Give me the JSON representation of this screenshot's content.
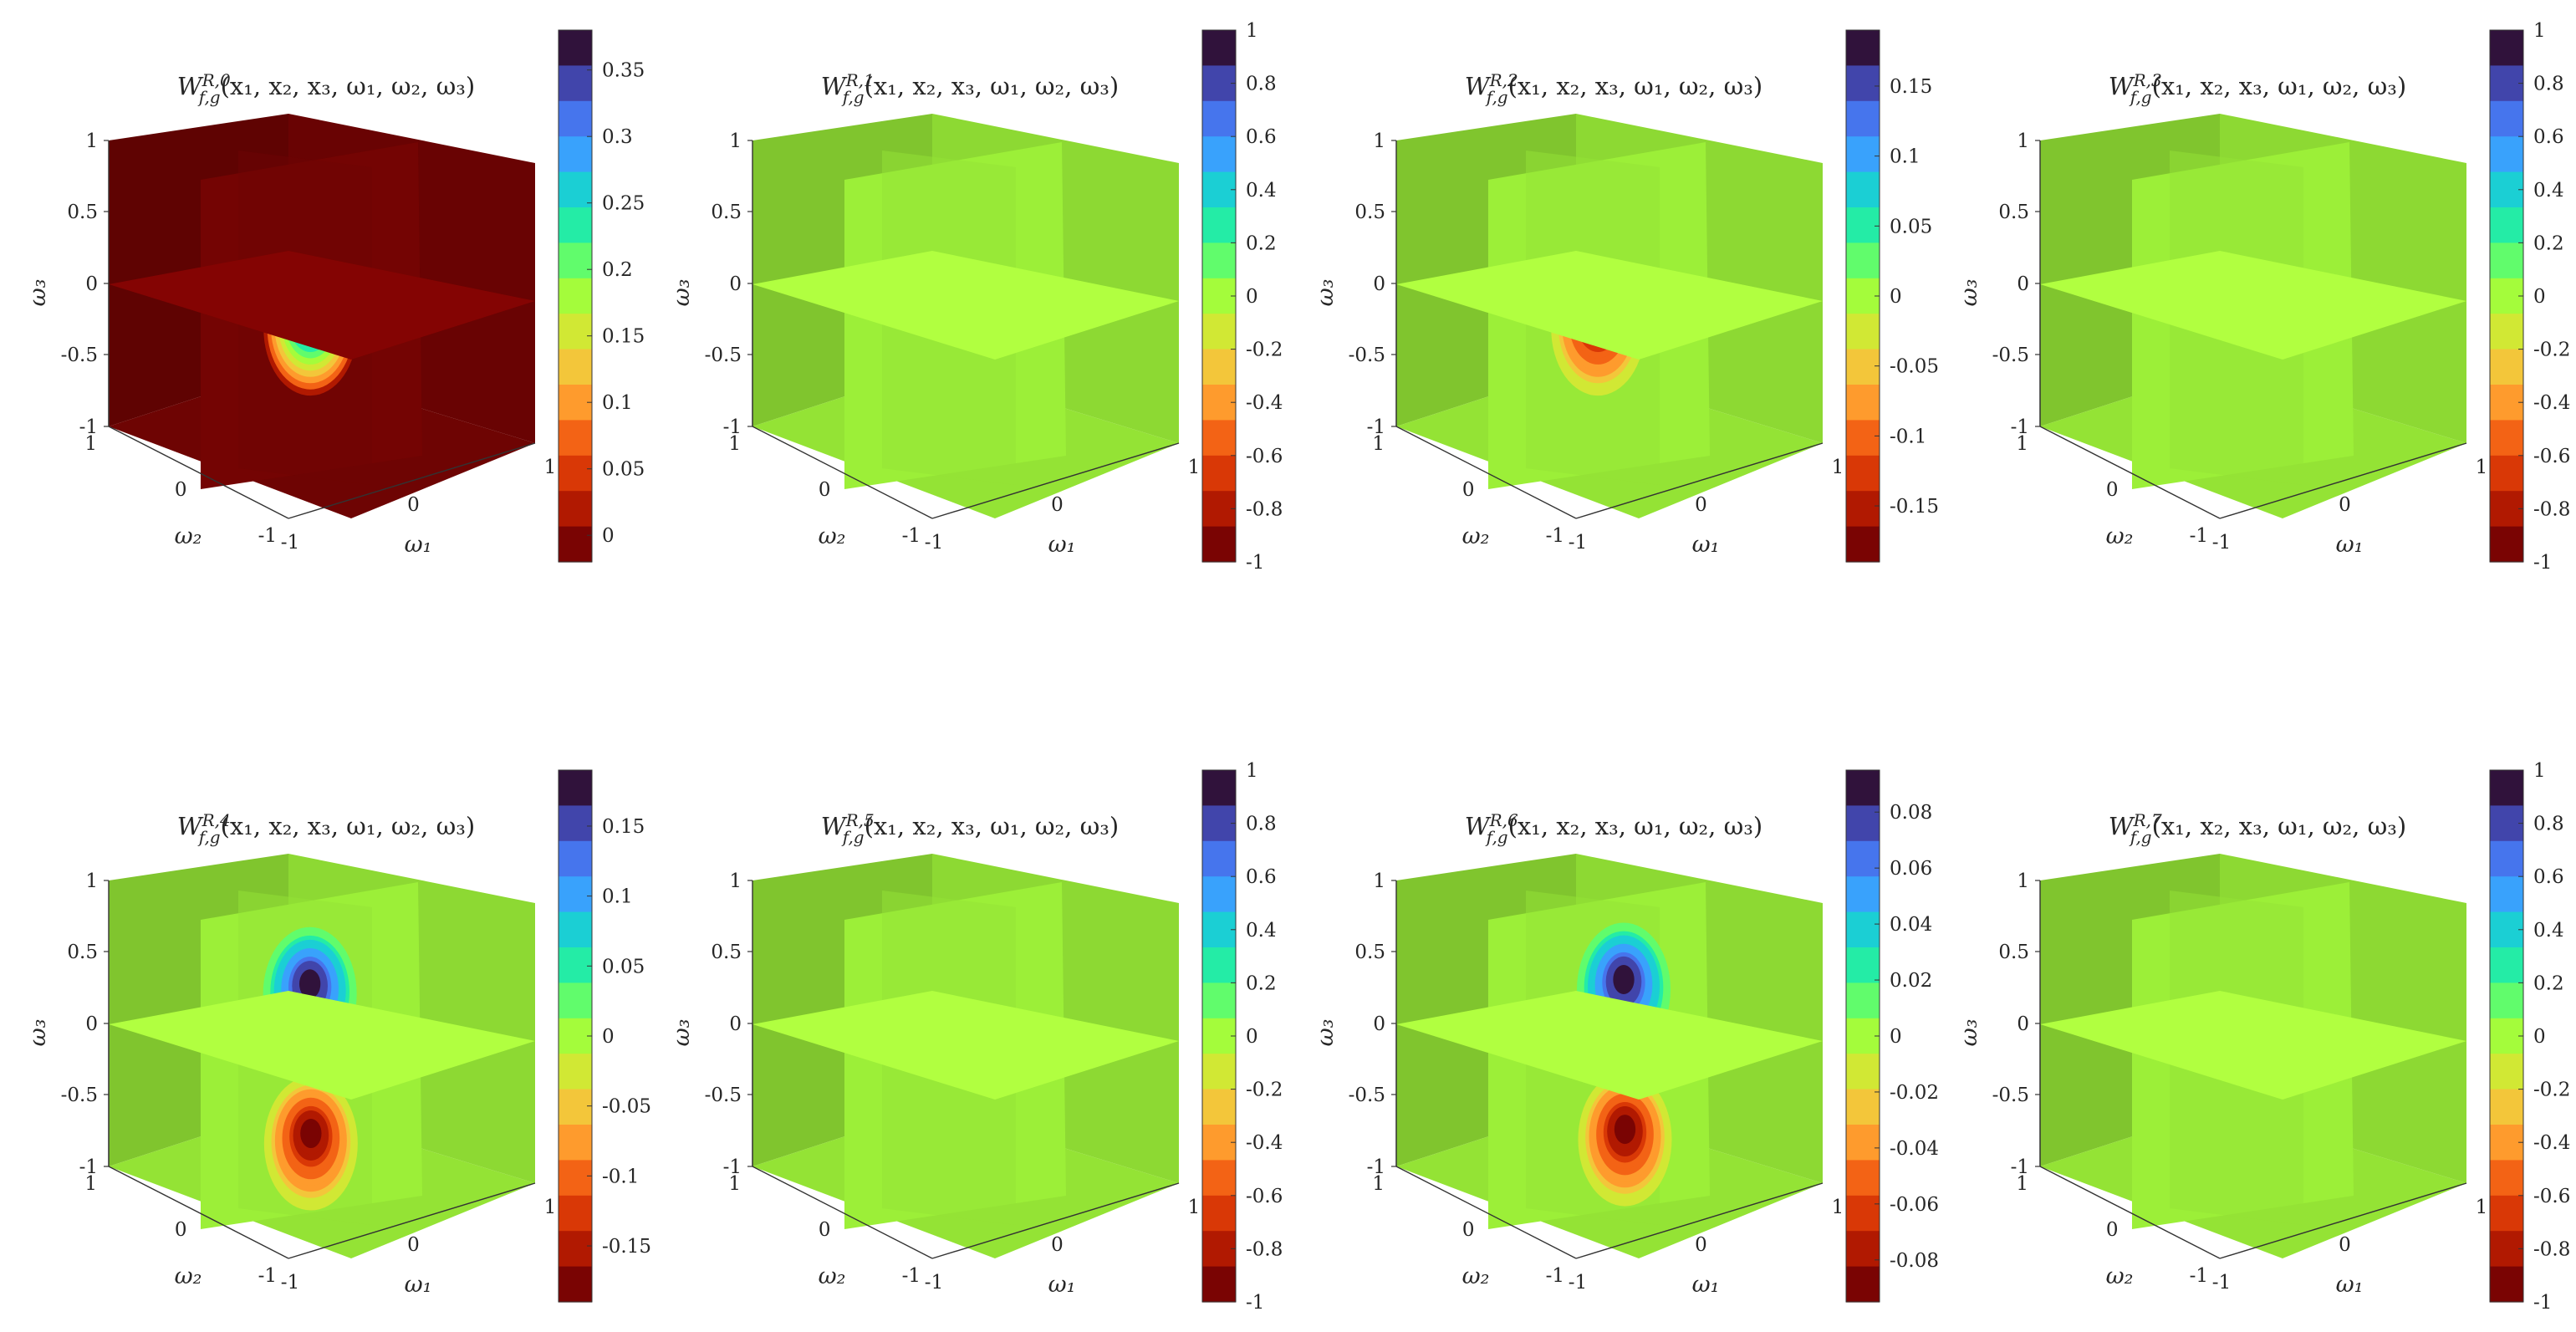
{
  "figure": {
    "colormap": [
      "#30123b",
      "#4145ab",
      "#4675ed",
      "#39a2fc",
      "#1bcfd4",
      "#24eca6",
      "#61fc6c",
      "#a4fc3b",
      "#d1e834",
      "#f3c63a",
      "#fe9b2d",
      "#f36315",
      "#d93806",
      "#b11901",
      "#7a0403"
    ],
    "panels": [
      {
        "title": "W_{f,g}^{R,0}(x1,x2,x3,ω1,ω2,ω3)",
        "title_base": "W",
        "title_sub": "f,g",
        "title_sup": "R,0",
        "title_args": "(x₁, x₂, x₃, ω₁, ω₂, ω₃)",
        "xlabel": "ω₁",
        "ylabel": "ω₂",
        "zlabel": "ω₃",
        "axis_ticks": [
          "1",
          "0.5",
          "0",
          "-0.5",
          "-1"
        ],
        "omega1_ticks": [
          "-1",
          "0",
          "1"
        ],
        "omega2_ticks": [
          "1",
          "0",
          "-1"
        ],
        "chart_data": {
          "type": "heatmap",
          "clim": [
            -0.02,
            0.38
          ],
          "colorbar_ticks": [
            "0.35",
            "0.3",
            "0.25",
            "0.2",
            "0.15",
            "0.1",
            "0.05",
            "0"
          ],
          "colorbar_values": [
            0.35,
            0.3,
            0.25,
            0.2,
            0.15,
            0.1,
            0.05,
            0
          ],
          "background_level": 0.0,
          "features": [
            {
              "plane": "front",
              "u": 0.5,
              "v": 0.5,
              "peak": 0.37
            }
          ]
        }
      },
      {
        "title": "W_{f,g}^{R,1}(x1,x2,x3,ω1,ω2,ω3)",
        "title_base": "W",
        "title_sub": "f,g",
        "title_sup": "R,1",
        "title_args": "(x₁, x₂, x₃, ω₁, ω₂, ω₃)",
        "xlabel": "ω₁",
        "ylabel": "ω₂",
        "zlabel": "ω₃",
        "axis_ticks": [
          "1",
          "0.5",
          "0",
          "-0.5",
          "-1"
        ],
        "omega1_ticks": [
          "-1",
          "0",
          "1"
        ],
        "omega2_ticks": [
          "1",
          "0",
          "-1"
        ],
        "chart_data": {
          "type": "heatmap",
          "clim": [
            -1,
            1
          ],
          "colorbar_ticks": [
            "1",
            "0.8",
            "0.6",
            "0.4",
            "0.2",
            "0",
            "-0.2",
            "-0.4",
            "-0.6",
            "-0.8",
            "-1"
          ],
          "colorbar_values": [
            1,
            0.8,
            0.6,
            0.4,
            0.2,
            0,
            -0.2,
            -0.4,
            -0.6,
            -0.8,
            -1
          ],
          "background_level": 0.0,
          "features": []
        }
      },
      {
        "title": "W_{f,g}^{R,2}(x1,x2,x3,ω1,ω2,ω3)",
        "title_base": "W",
        "title_sub": "f,g",
        "title_sup": "R,2",
        "title_args": "(x₁, x₂, x₃, ω₁, ω₂, ω₃)",
        "xlabel": "ω₁",
        "ylabel": "ω₂",
        "zlabel": "ω₃",
        "axis_ticks": [
          "1",
          "0.5",
          "0",
          "-0.5",
          "-1"
        ],
        "omega1_ticks": [
          "-1",
          "0",
          "1"
        ],
        "omega2_ticks": [
          "1",
          "0",
          "-1"
        ],
        "chart_data": {
          "type": "heatmap",
          "clim": [
            -0.19,
            0.19
          ],
          "colorbar_ticks": [
            "0.15",
            "0.1",
            "0.05",
            "0",
            "-0.05",
            "-0.1",
            "-0.15"
          ],
          "colorbar_values": [
            0.15,
            0.1,
            0.05,
            0,
            -0.05,
            -0.1,
            -0.15
          ],
          "background_level": 0.0,
          "features": [
            {
              "plane": "front",
              "u": 0.5,
              "v": 0.5,
              "peak": -0.19
            }
          ]
        }
      },
      {
        "title": "W_{f,g}^{R,3}(x1,x2,x3,ω1,ω2,ω3)",
        "title_base": "W",
        "title_sub": "f,g",
        "title_sup": "R,3",
        "title_args": "(x₁, x₂, x₃, ω₁, ω₂, ω₃)",
        "xlabel": "ω₁",
        "ylabel": "ω₂",
        "zlabel": "ω₃",
        "axis_ticks": [
          "1",
          "0.5",
          "0",
          "-0.5",
          "-1"
        ],
        "omega1_ticks": [
          "-1",
          "0",
          "1"
        ],
        "omega2_ticks": [
          "1",
          "0",
          "-1"
        ],
        "chart_data": {
          "type": "heatmap",
          "clim": [
            -1,
            1
          ],
          "colorbar_ticks": [
            "1",
            "0.8",
            "0.6",
            "0.4",
            "0.2",
            "0",
            "-0.2",
            "-0.4",
            "-0.6",
            "-0.8",
            "-1"
          ],
          "colorbar_values": [
            1,
            0.8,
            0.6,
            0.4,
            0.2,
            0,
            -0.2,
            -0.4,
            -0.6,
            -0.8,
            -1
          ],
          "background_level": 0.0,
          "features": []
        }
      },
      {
        "title": "W_{f,g}^{R,4}(x1,x2,x3,ω1,ω2,ω3)",
        "title_base": "W",
        "title_sub": "f,g",
        "title_sup": "R,4",
        "title_args": "(x₁, x₂, x₃, ω₁, ω₂, ω₃)",
        "xlabel": "ω₁",
        "ylabel": "ω₂",
        "zlabel": "ω₃",
        "axis_ticks": [
          "1",
          "0.5",
          "0",
          "-0.5",
          "-1"
        ],
        "omega1_ticks": [
          "-1",
          "0",
          "1"
        ],
        "omega2_ticks": [
          "1",
          "0",
          "-1"
        ],
        "chart_data": {
          "type": "heatmap",
          "clim": [
            -0.19,
            0.19
          ],
          "colorbar_ticks": [
            "0.15",
            "0.1",
            "0.05",
            "0",
            "-0.05",
            "-0.1",
            "-0.15"
          ],
          "colorbar_values": [
            0.15,
            0.1,
            0.05,
            0,
            -0.05,
            -0.1,
            -0.15
          ],
          "background_level": 0.0,
          "features": [
            {
              "plane": "front",
              "u": 0.5,
              "v": 0.26,
              "peak": -0.19
            },
            {
              "plane": "front",
              "u": 0.5,
              "v": 0.74,
              "peak": 0.19
            }
          ]
        }
      },
      {
        "title": "W_{f,g}^{R,5}(x1,x2,x3,ω1,ω2,ω3)",
        "title_base": "W",
        "title_sub": "f,g",
        "title_sup": "R,5",
        "title_args": "(x₁, x₂, x₃, ω₁, ω₂, ω₃)",
        "xlabel": "ω₁",
        "ylabel": "ω₂",
        "zlabel": "ω₃",
        "axis_ticks": [
          "1",
          "0.5",
          "0",
          "-0.5",
          "-1"
        ],
        "omega1_ticks": [
          "-1",
          "0",
          "1"
        ],
        "omega2_ticks": [
          "1",
          "0",
          "-1"
        ],
        "chart_data": {
          "type": "heatmap",
          "clim": [
            -1,
            1
          ],
          "colorbar_ticks": [
            "1",
            "0.8",
            "0.6",
            "0.4",
            "0.2",
            "0",
            "-0.2",
            "-0.4",
            "-0.6",
            "-0.8",
            "-1"
          ],
          "colorbar_values": [
            1,
            0.8,
            0.6,
            0.4,
            0.2,
            0,
            -0.2,
            -0.4,
            -0.6,
            -0.8,
            -1
          ],
          "background_level": 0.0,
          "features": []
        }
      },
      {
        "title": "W_{f,g}^{R,6}(x1,x2,x3,ω1,ω2,ω3)",
        "title_base": "W",
        "title_sub": "f,g",
        "title_sup": "R,6",
        "title_args": "(x₁, x₂, x₃, ω₁, ω₂, ω₃)",
        "xlabel": "ω₁",
        "ylabel": "ω₂",
        "zlabel": "ω₃",
        "axis_ticks": [
          "1",
          "0.5",
          "0",
          "-0.5",
          "-1"
        ],
        "omega1_ticks": [
          "-1",
          "0",
          "1"
        ],
        "omega2_ticks": [
          "1",
          "0",
          "-1"
        ],
        "chart_data": {
          "type": "heatmap",
          "clim": [
            -0.095,
            0.095
          ],
          "colorbar_ticks": [
            "0.08",
            "0.06",
            "0.04",
            "0.02",
            "0",
            "-0.02",
            "-0.04",
            "-0.06",
            "-0.08"
          ],
          "colorbar_values": [
            0.08,
            0.06,
            0.04,
            0.02,
            0,
            -0.02,
            -0.04,
            -0.06,
            -0.08
          ],
          "background_level": 0.0,
          "features": [
            {
              "plane": "front",
              "u": 0.62,
              "v": 0.74,
              "peak": 0.095
            },
            {
              "plane": "front",
              "u": 0.62,
              "v": 0.26,
              "peak": -0.095
            }
          ]
        }
      },
      {
        "title": "W_{f,g}^{R,7}(x1,x2,x3,ω1,ω2,ω3)",
        "title_base": "W",
        "title_sub": "f,g",
        "title_sup": "R,7",
        "title_args": "(x₁, x₂, x₃, ω₁, ω₂, ω₃)",
        "xlabel": "ω₁",
        "ylabel": "ω₂",
        "zlabel": "ω₃",
        "axis_ticks": [
          "1",
          "0.5",
          "0",
          "-0.5",
          "-1"
        ],
        "omega1_ticks": [
          "-1",
          "0",
          "1"
        ],
        "omega2_ticks": [
          "1",
          "0",
          "-1"
        ],
        "chart_data": {
          "type": "heatmap",
          "clim": [
            -1,
            1
          ],
          "colorbar_ticks": [
            "1",
            "0.8",
            "0.6",
            "0.4",
            "0.2",
            "0",
            "-0.2",
            "-0.4",
            "-0.6",
            "-0.8",
            "-1"
          ],
          "colorbar_values": [
            1,
            0.8,
            0.6,
            0.4,
            0.2,
            0,
            -0.2,
            -0.4,
            -0.6,
            -0.8,
            -1
          ],
          "background_level": 0.0,
          "features": []
        }
      }
    ]
  }
}
